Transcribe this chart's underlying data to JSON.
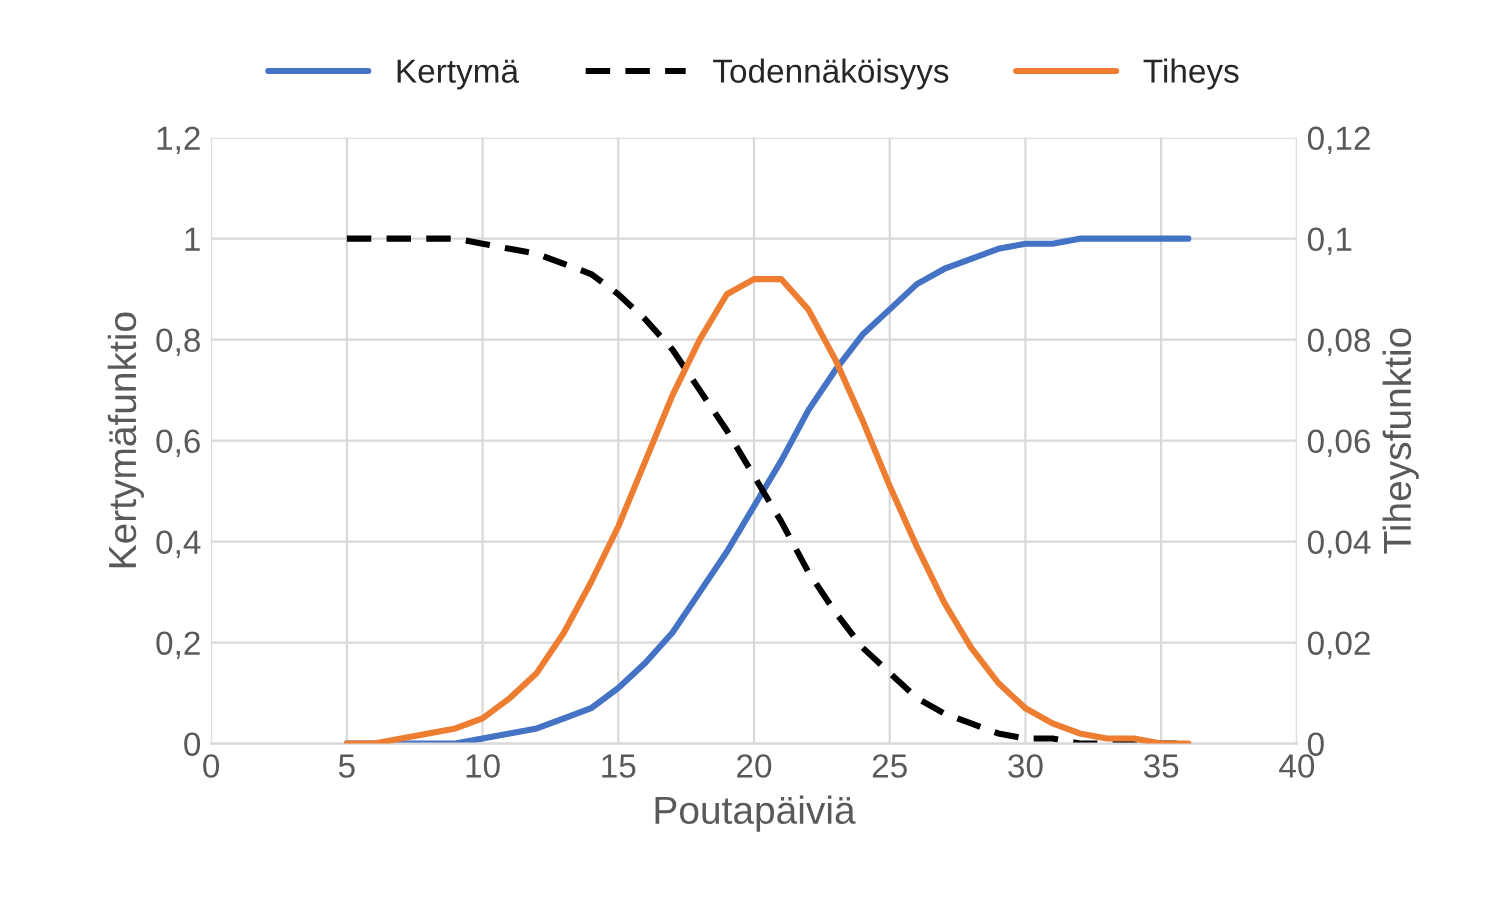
{
  "chart_data": {
    "type": "line",
    "xlabel": "Poutapäiviä",
    "ylabel": "Kertymäfunktio",
    "y2label": "Tiheysfunktio",
    "x": [
      5,
      6,
      7,
      8,
      9,
      10,
      11,
      12,
      13,
      14,
      15,
      16,
      17,
      18,
      19,
      20,
      21,
      22,
      23,
      24,
      25,
      26,
      27,
      28,
      29,
      30,
      31,
      32,
      33,
      34,
      35,
      36
    ],
    "series": [
      {
        "name": "Kertymä",
        "color": "#4472c4",
        "line_style": "solid",
        "values": [
          0,
          0,
          0,
          0,
          0,
          0.01,
          0.02,
          0.03,
          0.05,
          0.07,
          0.11,
          0.16,
          0.22,
          0.3,
          0.38,
          0.47,
          0.56,
          0.66,
          0.74,
          0.81,
          0.86,
          0.91,
          0.94,
          0.96,
          0.98,
          0.99,
          0.99,
          1,
          1,
          1,
          1,
          1
        ]
      },
      {
        "name": "Todennäköisyys",
        "color": "#000000",
        "line_style": "dashed",
        "values": [
          1,
          1,
          1,
          1,
          1,
          0.99,
          0.98,
          0.97,
          0.95,
          0.93,
          0.89,
          0.84,
          0.78,
          0.7,
          0.62,
          0.53,
          0.44,
          0.34,
          0.26,
          0.19,
          0.14,
          0.09,
          0.06,
          0.04,
          0.02,
          0.01,
          0.01,
          0,
          0,
          0,
          0,
          0
        ]
      },
      {
        "name": "Tiheys",
        "color": "#ed7d31",
        "line_style": "solid",
        "axis": "y2",
        "values": [
          0,
          0,
          0.001,
          0.002,
          0.003,
          0.005,
          0.009,
          0.014,
          0.022,
          0.032,
          0.043,
          0.056,
          0.069,
          0.08,
          0.089,
          0.092,
          0.092,
          0.086,
          0.076,
          0.064,
          0.051,
          0.039,
          0.028,
          0.019,
          0.012,
          0.007,
          0.004,
          0.002,
          0.001,
          0.001,
          0,
          0
        ]
      }
    ],
    "xlim": [
      0,
      40
    ],
    "xticks": [
      0,
      5,
      10,
      15,
      20,
      25,
      30,
      35,
      40
    ],
    "ylim": [
      0,
      1.2
    ],
    "yticks": [
      0,
      {
        "value": 0.2,
        "label": "0,2"
      },
      {
        "value": 0.4,
        "label": "0,4"
      },
      {
        "value": 0.6,
        "label": "0,6"
      },
      {
        "value": 0.8,
        "label": "0,8"
      },
      1,
      {
        "value": 1.2,
        "label": "1,2"
      }
    ],
    "y2lim": [
      0,
      0.12
    ],
    "y2ticks": [
      0,
      {
        "value": 0.02,
        "label": "0,02"
      },
      {
        "value": 0.04,
        "label": "0,04"
      },
      {
        "value": 0.06,
        "label": "0,06"
      },
      {
        "value": 0.08,
        "label": "0,08"
      },
      {
        "value": 0.1,
        "label": "0,1"
      },
      {
        "value": 0.12,
        "label": "0,12"
      }
    ],
    "grid": true,
    "legend": "top",
    "marker": "none"
  }
}
